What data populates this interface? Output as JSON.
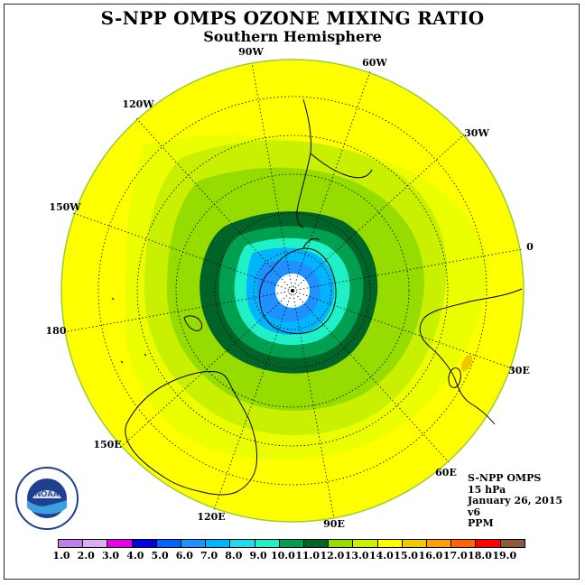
{
  "title": "S-NPP OMPS OZONE MIXING RATIO",
  "subtitle": "Southern Hemisphere",
  "longitude_labels": [
    "90W",
    "60W",
    "30W",
    "0",
    "30E",
    "60E",
    "90E",
    "120E",
    "150E",
    "180",
    "150W",
    "120W"
  ],
  "info": {
    "instrument": "S-NPP OMPS",
    "level": "15 hPa",
    "date": "January 26, 2015",
    "version": "v6",
    "units": "PPM"
  },
  "logo": {
    "text": "NOAA",
    "ring_text": "NATIONAL OCEANIC AND ATMOSPHERIC ADMINISTRATION · U.S. DEPARTMENT OF COMMERCE"
  },
  "legend": {
    "ticks": [
      "1.0",
      "2.0",
      "3.0",
      "4.0",
      "5.0",
      "6.0",
      "7.0",
      "8.0",
      "9.0",
      "10.0",
      "11.0",
      "12.0",
      "13.0",
      "14.0",
      "15.0",
      "16.0",
      "17.0",
      "18.0",
      "19.0"
    ],
    "colors": [
      "#c080e8",
      "#d8b0f0",
      "#e600e6",
      "#0000e0",
      "#0064ff",
      "#1e90ff",
      "#00b4ff",
      "#20dcf0",
      "#20f0c8",
      "#00a050",
      "#006428",
      "#96dc00",
      "#c8f000",
      "#ffff00",
      "#f0c800",
      "#ffa000",
      "#ff6400",
      "#ff0000",
      "#8c5a3c"
    ]
  },
  "colors": {
    "background_field": "#ffff00",
    "hemisphere_rim": "#e8ff00",
    "vortex_inner": "#ffffff"
  }
}
